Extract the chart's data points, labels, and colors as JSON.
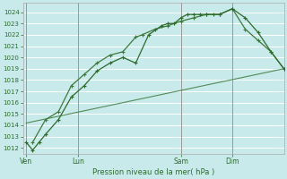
{
  "xlabel": "Pression niveau de la mer( hPa )",
  "bg_color": "#c8eaea",
  "grid_color": "#ffffff",
  "line_color_dark": "#2d6b2d",
  "line_color_light": "#3d7a3d",
  "ylim": [
    1011.5,
    1024.8
  ],
  "yticks": [
    1012,
    1013,
    1014,
    1015,
    1016,
    1017,
    1018,
    1019,
    1020,
    1021,
    1022,
    1023,
    1024
  ],
  "day_positions": [
    0,
    8,
    24,
    32
  ],
  "day_labels": [
    "Ven",
    "Lun",
    "Sam",
    "Dim"
  ],
  "xlim": [
    -0.5,
    40
  ],
  "vline_color": "#888888",
  "series1_x": [
    0,
    1,
    2,
    3,
    5,
    7,
    9,
    11,
    13,
    15,
    17,
    19,
    21,
    22,
    23,
    24,
    25,
    26,
    27,
    28,
    29,
    30,
    32,
    34,
    36,
    38,
    40
  ],
  "series1_y": [
    1012.5,
    1011.8,
    1012.5,
    1013.2,
    1014.5,
    1016.5,
    1017.5,
    1018.8,
    1019.5,
    1020.0,
    1019.5,
    1022.0,
    1022.8,
    1023.0,
    1023.0,
    1023.5,
    1023.8,
    1023.8,
    1023.8,
    1023.8,
    1023.8,
    1023.8,
    1024.3,
    1023.5,
    1022.2,
    1020.5,
    1019.0
  ],
  "series2_x": [
    1,
    3,
    5,
    7,
    9,
    11,
    13,
    15,
    17,
    18,
    20,
    22,
    24,
    26,
    28,
    30,
    32,
    34,
    36,
    38,
    40
  ],
  "series2_y": [
    1012.5,
    1014.5,
    1015.2,
    1017.5,
    1018.5,
    1019.5,
    1020.2,
    1020.5,
    1021.8,
    1022.0,
    1022.5,
    1022.8,
    1023.2,
    1023.5,
    1023.8,
    1023.8,
    1024.3,
    1022.5,
    1021.5,
    1020.5,
    1019.0
  ],
  "series3_x": [
    0,
    40
  ],
  "series3_y": [
    1014.2,
    1019.0
  ]
}
